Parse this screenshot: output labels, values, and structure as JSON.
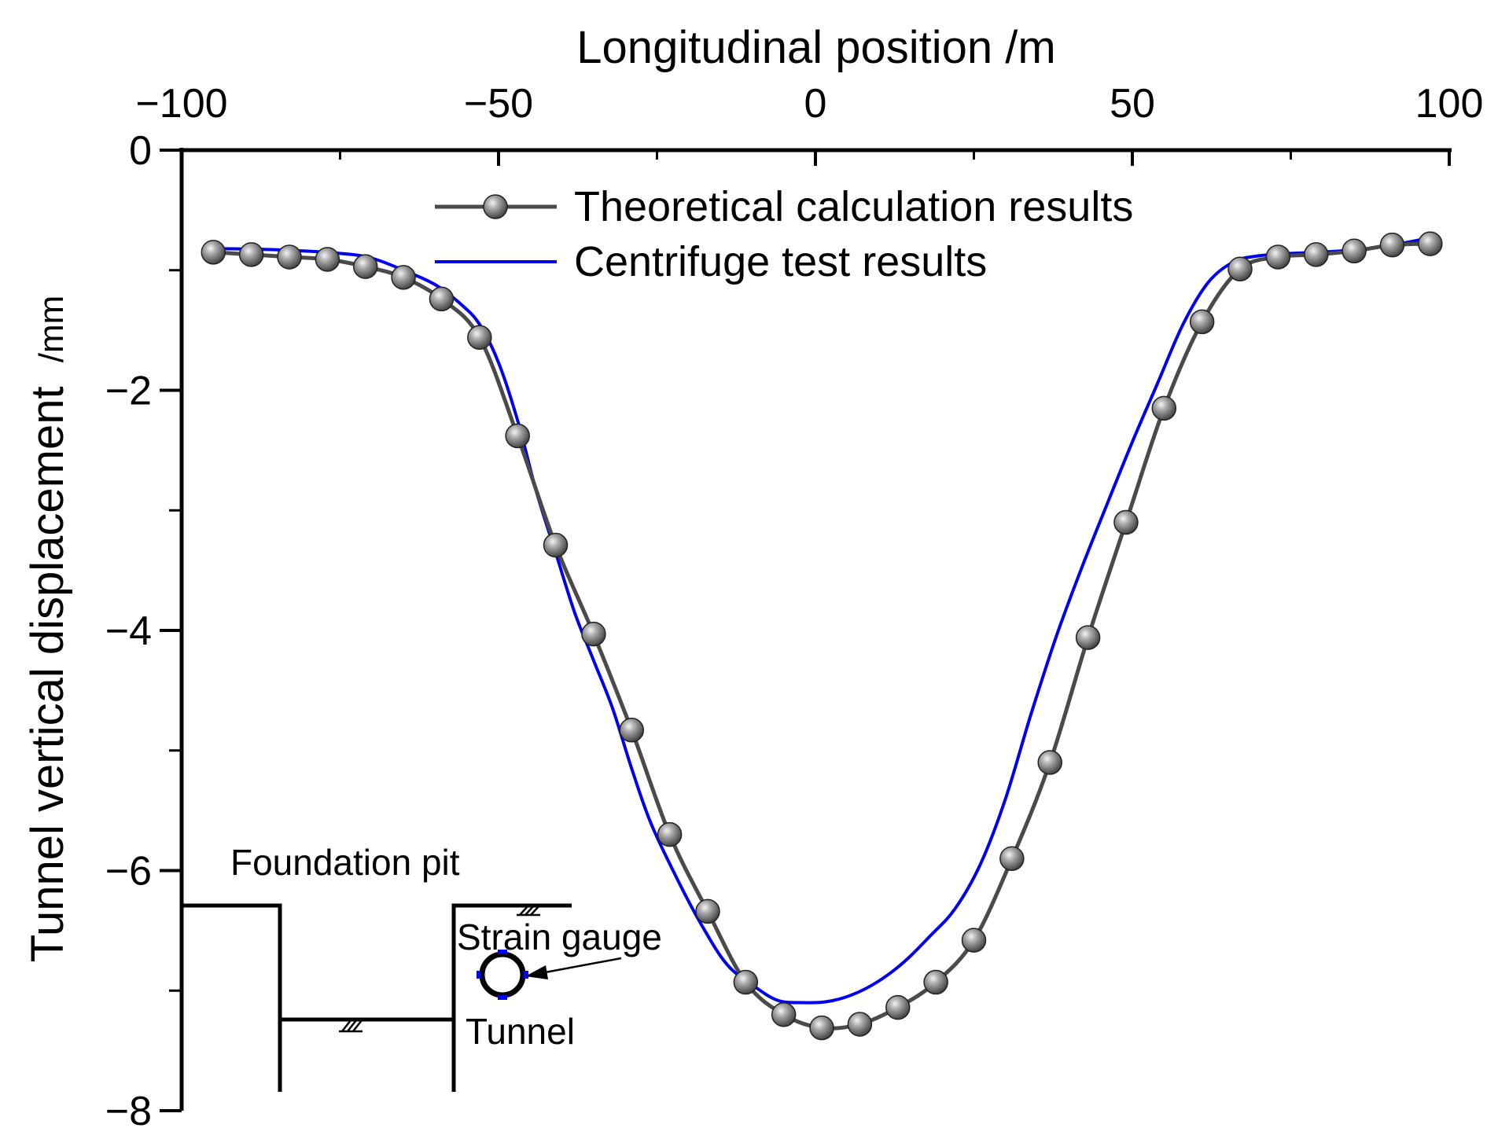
{
  "chart_data": {
    "type": "line",
    "title": "",
    "xlabel": "Longitudinal position /m",
    "ylabel": "Tunnel vertical displacement",
    "ylabel_unit": "/mm",
    "xlim": [
      -100,
      100
    ],
    "ylim": [
      -8,
      0
    ],
    "x_ticks": [
      {
        "value": -100,
        "label": "−100"
      },
      {
        "value": -50,
        "label": "−50"
      },
      {
        "value": 0,
        "label": "0"
      },
      {
        "value": 50,
        "label": "50"
      },
      {
        "value": 100,
        "label": "100"
      }
    ],
    "x_minor_ticks": [
      -75,
      -25,
      25,
      75
    ],
    "y_ticks": [
      {
        "value": 0,
        "label": "0"
      },
      {
        "value": -2,
        "label": "−2"
      },
      {
        "value": -4,
        "label": "−4"
      },
      {
        "value": -6,
        "label": "−6"
      },
      {
        "value": -8,
        "label": "−8"
      }
    ],
    "y_minor_ticks": [
      -1,
      -3,
      -5,
      -7
    ],
    "x_axis_position": "top",
    "grid": false,
    "legend_position": "top-center",
    "series": [
      {
        "name": "Theoretical calculation results",
        "color": "#4a4a4a",
        "marker": "sphere",
        "x": [
          -95,
          -89,
          -83,
          -77,
          -71,
          -65,
          -59,
          -53,
          -47,
          -41,
          -35,
          -29,
          -23,
          -17,
          -11,
          -5,
          1,
          7,
          13,
          19,
          25,
          31,
          37,
          43,
          49,
          55,
          61,
          67,
          73,
          79,
          85,
          91,
          97
        ],
        "y": [
          -0.85,
          -0.87,
          -0.89,
          -0.91,
          -0.97,
          -1.06,
          -1.24,
          -1.56,
          -2.38,
          -3.29,
          -4.03,
          -4.83,
          -5.7,
          -6.34,
          -6.93,
          -7.2,
          -7.31,
          -7.28,
          -7.14,
          -6.93,
          -6.58,
          -5.9,
          -5.1,
          -4.06,
          -3.1,
          -2.15,
          -1.43,
          -0.99,
          -0.89,
          -0.87,
          -0.84,
          -0.79,
          -0.78
        ]
      },
      {
        "name": "Centrifuge test results",
        "color": "#0000ee",
        "marker": "none",
        "x": [
          -95,
          -85,
          -75,
          -70,
          -65,
          -60,
          -56,
          -53,
          -50,
          -47,
          -44,
          -41,
          -38,
          -35,
          -32,
          -29,
          -26,
          -22,
          -18,
          -14,
          -10,
          -6,
          -2,
          2,
          6,
          10,
          14,
          18,
          22,
          26,
          30,
          34,
          38,
          42,
          46,
          50,
          54,
          58,
          62,
          66,
          70,
          75,
          80,
          85,
          90,
          97
        ],
        "y": [
          -0.82,
          -0.83,
          -0.86,
          -0.9,
          -1.0,
          -1.12,
          -1.28,
          -1.45,
          -1.77,
          -2.25,
          -2.85,
          -3.35,
          -3.85,
          -4.25,
          -4.65,
          -5.15,
          -5.6,
          -6.05,
          -6.45,
          -6.78,
          -6.95,
          -7.08,
          -7.1,
          -7.09,
          -7.03,
          -6.92,
          -6.76,
          -6.55,
          -6.32,
          -5.95,
          -5.4,
          -4.7,
          -4.05,
          -3.48,
          -2.95,
          -2.43,
          -1.94,
          -1.45,
          -1.1,
          -0.93,
          -0.88,
          -0.86,
          -0.85,
          -0.83,
          -0.8,
          -0.73
        ]
      }
    ],
    "inset": {
      "foundation_pit_label": "Foundation pit",
      "strain_gauge_label": "Strain gauge",
      "tunnel_label": "Tunnel",
      "outline_color": "#000000",
      "gauge_color": "#0000ee"
    }
  }
}
